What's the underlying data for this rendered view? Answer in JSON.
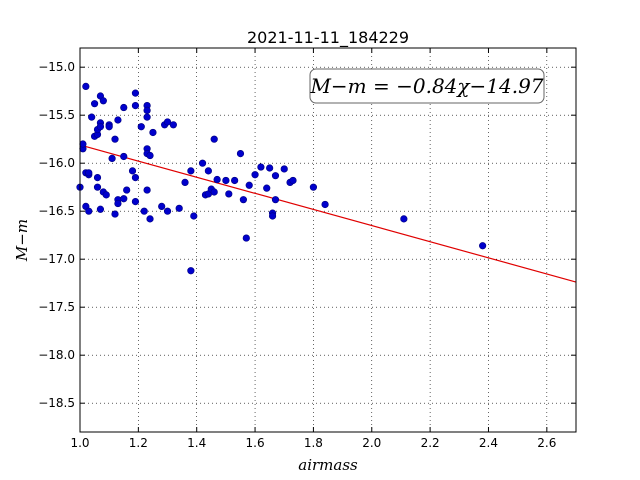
{
  "chart_data": {
    "type": "scatter",
    "title": "2021-11-11_184229",
    "xlabel": "airmass",
    "ylabel": "M−m",
    "xlim": [
      1.0,
      2.7
    ],
    "ylim": [
      -18.8,
      -14.8
    ],
    "y_inverted": true,
    "grid": true,
    "xticks": [
      1.0,
      1.2,
      1.4,
      1.6,
      1.8,
      2.0,
      2.2,
      2.4,
      2.6
    ],
    "xtick_labels": [
      "1.0",
      "1.2",
      "1.4",
      "1.6",
      "1.8",
      "2.0",
      "2.2",
      "2.4",
      "2.6"
    ],
    "yticks": [
      -15.0,
      -15.5,
      -16.0,
      -16.5,
      -17.0,
      -17.5,
      -18.0,
      -18.5
    ],
    "ytick_labels": [
      "−15.0",
      "−15.5",
      "−16.0",
      "−16.5",
      "−17.0",
      "−17.5",
      "−18.0",
      "−18.5"
    ],
    "annotation": "M−m = −0.84χ−14.97",
    "fit": {
      "slope": -0.84,
      "intercept": -14.97,
      "color": "#e00000"
    },
    "marker_color": "#0000cc",
    "points": [
      [
        1.0,
        -16.25
      ],
      [
        1.01,
        -15.85
      ],
      [
        1.01,
        -15.8
      ],
      [
        1.02,
        -15.2
      ],
      [
        1.02,
        -16.1
      ],
      [
        1.03,
        -16.12
      ],
      [
        1.02,
        -16.45
      ],
      [
        1.03,
        -16.5
      ],
      [
        1.03,
        -16.1
      ],
      [
        1.04,
        -15.52
      ],
      [
        1.05,
        -15.72
      ],
      [
        1.05,
        -15.38
      ],
      [
        1.06,
        -15.7
      ],
      [
        1.06,
        -15.65
      ],
      [
        1.06,
        -16.25
      ],
      [
        1.06,
        -16.15
      ],
      [
        1.07,
        -15.58
      ],
      [
        1.07,
        -15.62
      ],
      [
        1.07,
        -15.3
      ],
      [
        1.08,
        -15.35
      ],
      [
        1.07,
        -16.48
      ],
      [
        1.08,
        -16.3
      ],
      [
        1.09,
        -16.33
      ],
      [
        1.1,
        -15.6
      ],
      [
        1.1,
        -15.62
      ],
      [
        1.11,
        -15.95
      ],
      [
        1.12,
        -15.75
      ],
      [
        1.12,
        -16.53
      ],
      [
        1.13,
        -16.38
      ],
      [
        1.13,
        -16.42
      ],
      [
        1.13,
        -15.55
      ],
      [
        1.15,
        -15.42
      ],
      [
        1.15,
        -16.37
      ],
      [
        1.15,
        -15.93
      ],
      [
        1.16,
        -16.28
      ],
      [
        1.18,
        -16.08
      ],
      [
        1.19,
        -15.27
      ],
      [
        1.19,
        -15.4
      ],
      [
        1.19,
        -16.4
      ],
      [
        1.19,
        -16.15
      ],
      [
        1.21,
        -15.62
      ],
      [
        1.22,
        -16.5
      ],
      [
        1.23,
        -15.4
      ],
      [
        1.23,
        -15.45
      ],
      [
        1.23,
        -15.52
      ],
      [
        1.23,
        -15.85
      ],
      [
        1.23,
        -15.9
      ],
      [
        1.23,
        -16.28
      ],
      [
        1.24,
        -16.58
      ],
      [
        1.24,
        -15.92
      ],
      [
        1.25,
        -15.68
      ],
      [
        1.28,
        -16.45
      ],
      [
        1.29,
        -15.6
      ],
      [
        1.3,
        -15.57
      ],
      [
        1.3,
        -16.5
      ],
      [
        1.32,
        -15.6
      ],
      [
        1.34,
        -16.47
      ],
      [
        1.36,
        -16.2
      ],
      [
        1.38,
        -17.12
      ],
      [
        1.38,
        -16.08
      ],
      [
        1.39,
        -16.55
      ],
      [
        1.42,
        -16.0
      ],
      [
        1.43,
        -16.33
      ],
      [
        1.44,
        -16.32
      ],
      [
        1.44,
        -16.08
      ],
      [
        1.45,
        -16.27
      ],
      [
        1.46,
        -16.3
      ],
      [
        1.46,
        -15.75
      ],
      [
        1.47,
        -16.17
      ],
      [
        1.5,
        -16.18
      ],
      [
        1.51,
        -16.32
      ],
      [
        1.53,
        -16.18
      ],
      [
        1.55,
        -15.9
      ],
      [
        1.56,
        -16.38
      ],
      [
        1.57,
        -16.78
      ],
      [
        1.58,
        -16.23
      ],
      [
        1.6,
        -16.12
      ],
      [
        1.62,
        -16.04
      ],
      [
        1.64,
        -16.26
      ],
      [
        1.65,
        -16.05
      ],
      [
        1.66,
        -16.52
      ],
      [
        1.66,
        -16.55
      ],
      [
        1.67,
        -16.38
      ],
      [
        1.67,
        -16.13
      ],
      [
        1.7,
        -16.06
      ],
      [
        1.72,
        -16.2
      ],
      [
        1.73,
        -16.18
      ],
      [
        1.8,
        -16.25
      ],
      [
        1.84,
        -16.43
      ],
      [
        2.11,
        -16.58
      ],
      [
        2.38,
        -16.86
      ]
    ]
  }
}
